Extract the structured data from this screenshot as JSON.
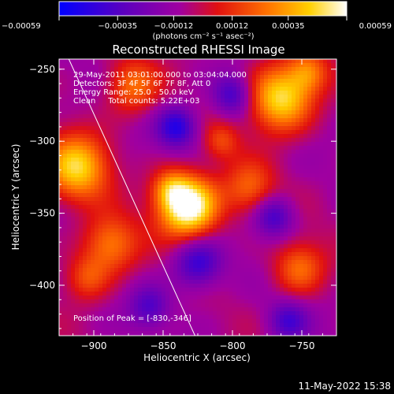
{
  "chart_data": {
    "type": "heatmap",
    "title": "Reconstructed RHESSI Image",
    "xlabel": "Heliocentric X (arcsec)",
    "ylabel": "Heliocentric Y (arcsec)",
    "xlim": [
      -925,
      -725
    ],
    "ylim": [
      -435,
      -243
    ],
    "x_ticks": [
      {
        "value": -900,
        "label": "−900"
      },
      {
        "value": -850,
        "label": "−850"
      },
      {
        "value": -800,
        "label": "−800"
      },
      {
        "value": -750,
        "label": "−750"
      }
    ],
    "y_ticks": [
      {
        "value": -250,
        "label": "−250"
      },
      {
        "value": -300,
        "label": "−300"
      },
      {
        "value": -350,
        "label": "−350"
      },
      {
        "value": -400,
        "label": "−400"
      }
    ],
    "colorbar": {
      "range": [
        -0.00059,
        0.00059
      ],
      "ticks": [
        {
          "value": -0.00059,
          "label": "−0.00059"
        },
        {
          "value": -0.00035,
          "label": "−0.00035"
        },
        {
          "value": -0.00012,
          "label": "−0.00012"
        },
        {
          "value": 0.00012,
          "label": "0.00012"
        },
        {
          "value": 0.00035,
          "label": "0.00035"
        },
        {
          "value": 0.00059,
          "label": "0.00059"
        }
      ],
      "unit_text": "(photons cm⁻² s⁻¹ asec⁻²)",
      "colors": [
        "#0000ff",
        "#5a00c0",
        "#a000a0",
        "#e01010",
        "#ff7000",
        "#ffd000",
        "#ffffff"
      ]
    },
    "annotations": {
      "line1": "29-May-2011 03:01:00.000 to 03:04:04.000",
      "line2": "Detectors: 3F 4F 5F 6F 7F 8F, Att 0",
      "line3": "Energy Range: 25.0 - 50.0 keV",
      "line4": "Clean     Total counts: 5.22E+03",
      "peak": "Position of Peak = [-830,-346]"
    },
    "peak": {
      "x": -830,
      "y": -346
    },
    "limb_line": [
      {
        "x": -918,
        "y": -243
      },
      {
        "x": -827,
        "y": -435
      }
    ],
    "sources": [
      {
        "x": -832,
        "y": -345,
        "sigma": 15,
        "amplitude": 1.05
      },
      {
        "x": -845,
        "y": -333,
        "sigma": 9,
        "amplitude": 0.35
      },
      {
        "x": -765,
        "y": -270,
        "sigma": 16,
        "amplitude": 0.8
      },
      {
        "x": -745,
        "y": -252,
        "sigma": 10,
        "amplitude": 0.4
      },
      {
        "x": -912,
        "y": -318,
        "sigma": 16,
        "amplitude": 0.72
      },
      {
        "x": -888,
        "y": -372,
        "sigma": 14,
        "amplitude": 0.5
      },
      {
        "x": -872,
        "y": -262,
        "sigma": 13,
        "amplitude": 0.45
      },
      {
        "x": -788,
        "y": -333,
        "sigma": 13,
        "amplitude": 0.4
      },
      {
        "x": -752,
        "y": -388,
        "sigma": 13,
        "amplitude": 0.45
      },
      {
        "x": -905,
        "y": -395,
        "sigma": 11,
        "amplitude": 0.35
      },
      {
        "x": -808,
        "y": -300,
        "sigma": 9,
        "amplitude": 0.3
      },
      {
        "x": -840,
        "y": -290,
        "sigma": 10,
        "amplitude": -0.55
      },
      {
        "x": -800,
        "y": -268,
        "sigma": 10,
        "amplitude": -0.45
      },
      {
        "x": -825,
        "y": -385,
        "sigma": 12,
        "amplitude": -0.5
      },
      {
        "x": -770,
        "y": -352,
        "sigma": 10,
        "amplitude": -0.45
      },
      {
        "x": -860,
        "y": -415,
        "sigma": 10,
        "amplitude": -0.35
      },
      {
        "x": -760,
        "y": -425,
        "sigma": 10,
        "amplitude": -0.4
      }
    ]
  },
  "footer": {
    "date": "11-May-2022 15:38"
  }
}
